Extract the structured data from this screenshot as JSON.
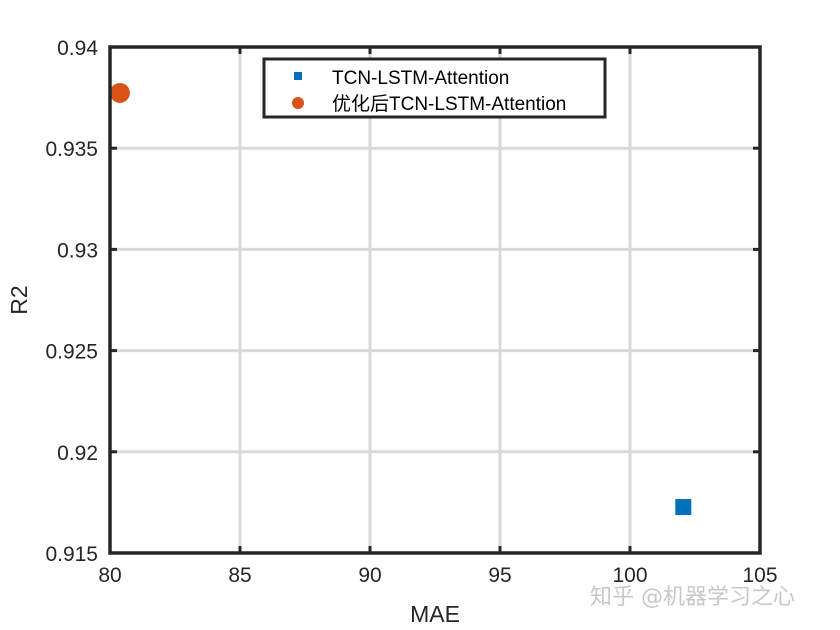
{
  "chart_data": {
    "type": "scatter",
    "title": "",
    "xlabel": "MAE",
    "ylabel": "R2",
    "xlim": [
      80,
      105
    ],
    "ylim": [
      0.915,
      0.94
    ],
    "xticks": [
      "80",
      "85",
      "90",
      "95",
      "100",
      "105"
    ],
    "yticks": [
      "0.915",
      "0.92",
      "0.925",
      "0.93",
      "0.935",
      "0.94"
    ],
    "grid": true,
    "legend_position": "top-center-inside",
    "series": [
      {
        "name": "TCN-LSTM-Attention",
        "marker": "square",
        "color": "#0072BD",
        "points": [
          {
            "x": 102.05,
            "y": 0.91727
          }
        ]
      },
      {
        "name": "优化后TCN-LSTM-Attention",
        "marker": "circle",
        "color": "#D95319",
        "points": [
          {
            "x": 80.38,
            "y": 0.93773
          }
        ]
      }
    ]
  },
  "legend": {
    "items": [
      {
        "label": "TCN-LSTM-Attention",
        "color": "#0072BD"
      },
      {
        "label": "优化后TCN-LSTM-Attention",
        "color": "#D95319"
      }
    ]
  },
  "watermark": "知乎 @机器学习之心"
}
